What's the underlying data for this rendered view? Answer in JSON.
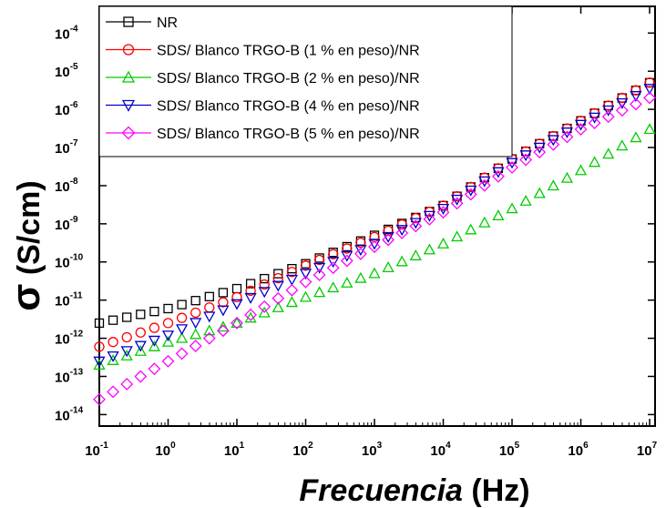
{
  "chart_data": {
    "type": "scatter",
    "xscale": "log",
    "yscale": "log",
    "xlim": [
      0.1,
      12000000
    ],
    "ylim": [
      5e-15,
      0.0005
    ],
    "xlabel_italic": "Frecuencia",
    "xlabel_unit": " (Hz)",
    "ylabel_symbol": "σ",
    "ylabel_unit": " (S/cm)",
    "x_ticks": [
      {
        "base": "10",
        "exp": "-1"
      },
      {
        "base": "10",
        "exp": "0"
      },
      {
        "base": "10",
        "exp": "1"
      },
      {
        "base": "10",
        "exp": "2"
      },
      {
        "base": "10",
        "exp": "3"
      },
      {
        "base": "10",
        "exp": "4"
      },
      {
        "base": "10",
        "exp": "5"
      },
      {
        "base": "10",
        "exp": "6"
      },
      {
        "base": "10",
        "exp": "7"
      }
    ],
    "y_ticks": [
      {
        "base": "10",
        "exp": "-14"
      },
      {
        "base": "10",
        "exp": "-13"
      },
      {
        "base": "10",
        "exp": "-12"
      },
      {
        "base": "10",
        "exp": "-11"
      },
      {
        "base": "10",
        "exp": "-10"
      },
      {
        "base": "10",
        "exp": "-9"
      },
      {
        "base": "10",
        "exp": "-8"
      },
      {
        "base": "10",
        "exp": "-7"
      },
      {
        "base": "10",
        "exp": "-6"
      },
      {
        "base": "10",
        "exp": "-5"
      },
      {
        "base": "10",
        "exp": "-4"
      }
    ],
    "legend_position": "top-left",
    "points_per_decade": 5,
    "series": [
      {
        "name": "NR",
        "color": "#000000",
        "marker": "square",
        "points": [
          [
            0.1,
            2.5e-12
          ],
          [
            1,
            6e-12
          ],
          [
            10,
            2e-11
          ],
          [
            100,
            9e-11
          ],
          [
            1000,
            5e-10
          ],
          [
            10000,
            3e-09
          ],
          [
            100000,
            5e-08
          ],
          [
            1000000,
            5e-07
          ],
          [
            10000000,
            5e-06
          ]
        ]
      },
      {
        "name": "SDS/ Blanco TRGO-B (1 % en peso)/NR",
        "color": "#ff0000",
        "marker": "circle",
        "points": [
          [
            0.1,
            6e-13
          ],
          [
            1,
            2.5e-12
          ],
          [
            10,
            1.2e-11
          ],
          [
            100,
            8e-11
          ],
          [
            1000,
            4.5e-10
          ],
          [
            10000,
            3e-09
          ],
          [
            100000,
            5e-08
          ],
          [
            1000000,
            5e-07
          ],
          [
            10000000,
            5e-06
          ]
        ]
      },
      {
        "name": "SDS/ Blanco TRGO-B (2 % en peso)/NR",
        "color": "#00cc00",
        "marker": "triangle-up",
        "points": [
          [
            0.1,
            2e-13
          ],
          [
            1,
            8e-13
          ],
          [
            10,
            2.5e-12
          ],
          [
            100,
            1.2e-11
          ],
          [
            1000,
            5e-11
          ],
          [
            10000,
            3e-10
          ],
          [
            100000,
            2.5e-09
          ],
          [
            1000000,
            2.5e-08
          ],
          [
            10000000,
            3e-07
          ]
        ]
      },
      {
        "name": "SDS/ Blanco TRGO-B (4 % en peso)/NR",
        "color": "#0000cc",
        "marker": "triangle-down",
        "points": [
          [
            0.1,
            2.5e-13
          ],
          [
            1,
            1.2e-12
          ],
          [
            10,
            8e-12
          ],
          [
            100,
            5e-11
          ],
          [
            1000,
            3e-10
          ],
          [
            10000,
            2.5e-09
          ],
          [
            100000,
            4e-08
          ],
          [
            1000000,
            4e-07
          ],
          [
            10000000,
            3.5e-06
          ]
        ]
      },
      {
        "name": "SDS/ Blanco TRGO-B (5 % en peso)/NR",
        "color": "#ff00ff",
        "marker": "diamond",
        "points": [
          [
            0.1,
            2.5e-14
          ],
          [
            1,
            2.5e-13
          ],
          [
            10,
            2.5e-12
          ],
          [
            100,
            3e-11
          ],
          [
            1000,
            2.5e-10
          ],
          [
            10000,
            2e-09
          ],
          [
            100000,
            3e-08
          ],
          [
            1000000,
            3e-07
          ],
          [
            10000000,
            2e-06
          ]
        ]
      }
    ]
  }
}
